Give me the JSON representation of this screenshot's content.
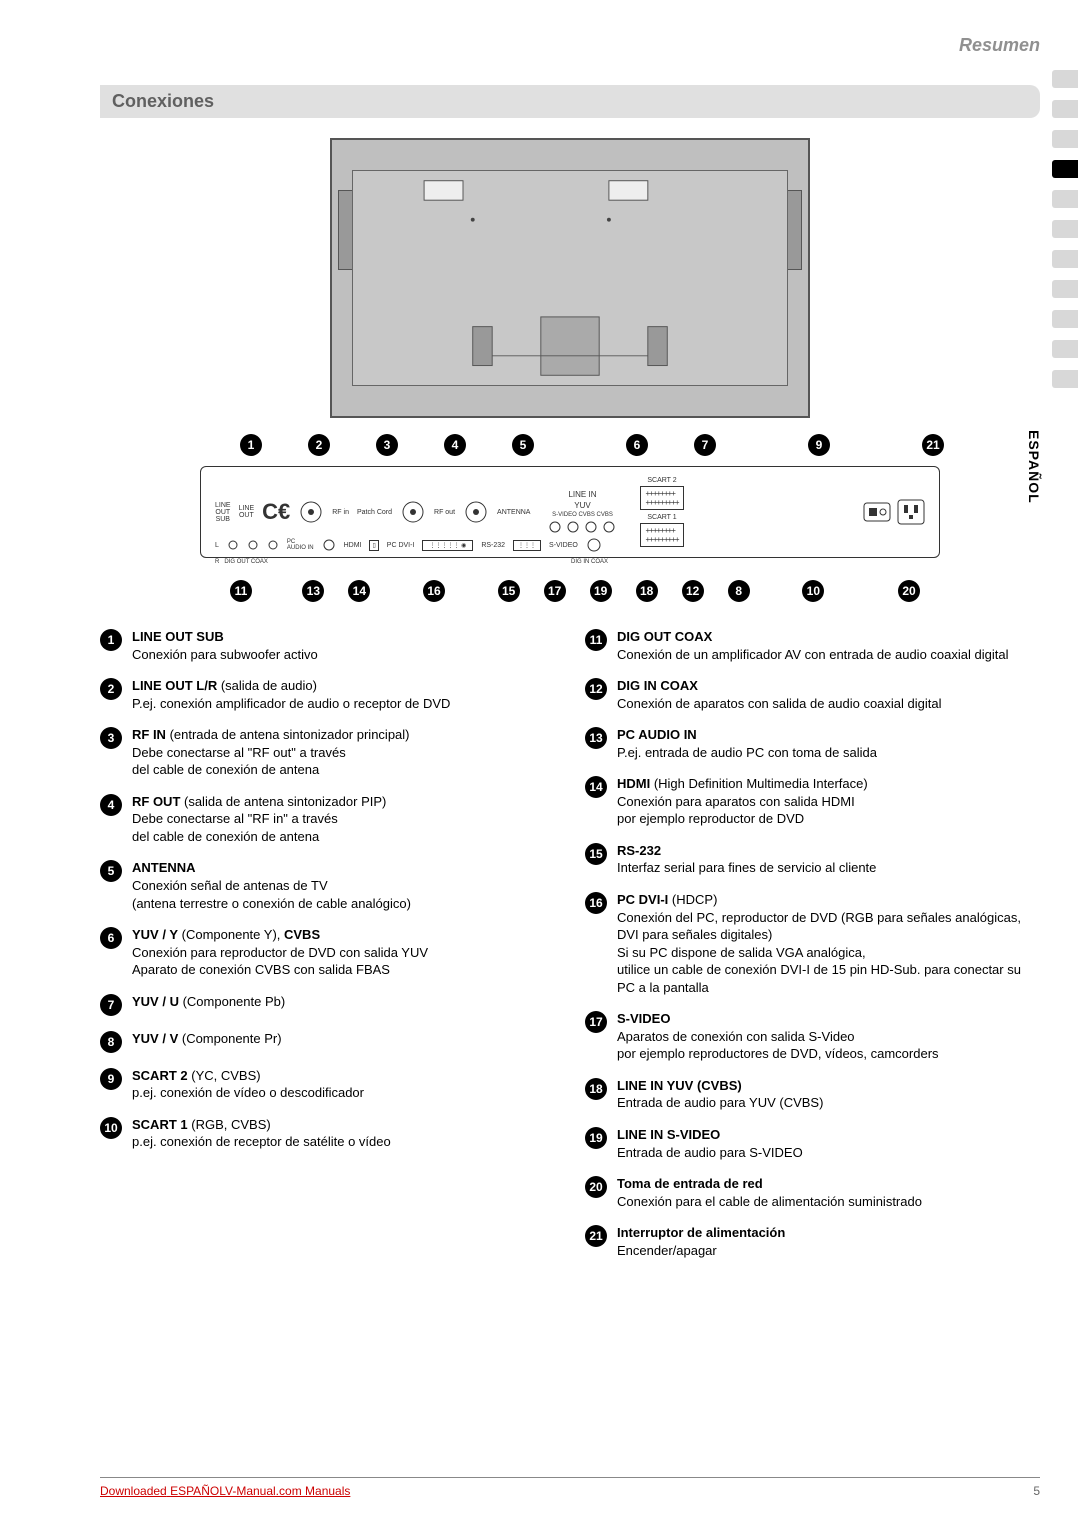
{
  "page": {
    "header": "Resumen",
    "section_title": "Conexiones",
    "side_tab": "ESPAÑOL",
    "footer_left_prefix": "Downloaded",
    "footer_link_1": "ESPAÑOL",
    "footer_link_2": "V-Manual.com Manuals",
    "footer_page": "5"
  },
  "diagram": {
    "top_row": [
      "1",
      "2",
      "3",
      "4",
      "5",
      "6",
      "7",
      "9",
      "21"
    ],
    "bottom_row": [
      "11",
      "13",
      "14",
      "16",
      "15",
      "17",
      "19",
      "18",
      "12",
      "8",
      "10",
      "20"
    ],
    "panel_labels": {
      "line_out_sub": "LINE\nOUT\nSUB",
      "line_out": "LINE\nOUT",
      "rf_in": "RF in",
      "patch": "Patch Cord",
      "rf_out": "RF out",
      "antenna": "ANTENNA",
      "pc_audio": "PC\nAUDIO IN",
      "hdmi": "HDMI",
      "pc_dvi": "PC DVI-I",
      "rs232": "RS-232",
      "svideo": "S-VIDEO",
      "line_in": "LINE IN",
      "yuv": "YUV",
      "svideo_cvbs": "S-VIDEO  CVBS  CVBS",
      "scart2": "SCART 2",
      "scart1": "SCART 1",
      "dig_out": "DIG OUT COAX",
      "dig_in": "DIG IN COAX",
      "l": "L",
      "r": "R"
    }
  },
  "connections_left": [
    {
      "num": "1",
      "title": "LINE OUT SUB",
      "desc": "Conexión para subwoofer activo"
    },
    {
      "num": "2",
      "title": "LINE OUT L/R",
      "suffix": " (salida de audio)",
      "desc": "P.ej. conexión amplificador de audio o receptor de DVD"
    },
    {
      "num": "3",
      "title": "RF IN",
      "suffix": " (entrada de antena sintonizador principal)",
      "desc": "Debe conectarse al \"RF out\" a través\ndel cable de conexión de antena"
    },
    {
      "num": "4",
      "title": "RF OUT",
      "suffix": " (salida de antena sintonizador PIP)",
      "desc": "Debe conectarse al \"RF in\" a través\ndel cable de conexión de antena"
    },
    {
      "num": "5",
      "title": "ANTENNA",
      "desc": "Conexión señal de antenas de TV\n(antena terrestre o conexión de cable analógico)"
    },
    {
      "num": "6",
      "title": "YUV / Y",
      "suffix": " (Componente Y), ",
      "title2": "CVBS",
      "desc": "Conexión para reproductor de DVD con salida YUV\nAparato de conexión CVBS con salida FBAS"
    },
    {
      "num": "7",
      "title": "YUV / U",
      "suffix": " (Componente Pb)",
      "desc": ""
    },
    {
      "num": "8",
      "title": "YUV / V",
      "suffix": " (Componente Pr)",
      "desc": ""
    },
    {
      "num": "9",
      "title": "SCART 2",
      "suffix": " (YC, CVBS)",
      "desc": "p.ej. conexión de vídeo o descodificador"
    },
    {
      "num": "10",
      "title": "SCART 1",
      "suffix": " (RGB, CVBS)",
      "desc": "p.ej. conexión de receptor de satélite o vídeo"
    }
  ],
  "connections_right": [
    {
      "num": "11",
      "title": "DIG OUT COAX",
      "desc": "Conexión de un amplificador AV con entrada de audio coaxial digital"
    },
    {
      "num": "12",
      "title": "DIG IN COAX",
      "desc": "Conexión de aparatos con salida de audio coaxial digital"
    },
    {
      "num": "13",
      "title": "PC AUDIO IN",
      "desc": "P.ej. entrada de audio PC con toma de salida"
    },
    {
      "num": "14",
      "title": "HDMI",
      "suffix": " (High Definition Multimedia Interface)",
      "desc": "Conexión para aparatos con salida HDMI\npor ejemplo reproductor de DVD"
    },
    {
      "num": "15",
      "title": "RS-232",
      "desc": "Interfaz serial para fines de servicio al cliente"
    },
    {
      "num": "16",
      "title": "PC DVI-I",
      "suffix": " (HDCP)",
      "desc": "Conexión del PC, reproductor de DVD (RGB para señales analógicas, DVI para señales digitales)\nSi su PC dispone de salida VGA analógica,\nutilice un cable de conexión DVI-I de 15 pin HD-Sub. para conectar su PC a la pantalla"
    },
    {
      "num": "17",
      "title": "S-VIDEO",
      "desc": "Aparatos de conexión con salida S-Video\npor ejemplo reproductores de DVD, vídeos, camcorders"
    },
    {
      "num": "18",
      "title": "LINE IN YUV (CVBS)",
      "desc": "Entrada de audio para YUV (CVBS)"
    },
    {
      "num": "19",
      "title": "LINE IN S-VIDEO",
      "desc": "Entrada de audio para S-VIDEO"
    },
    {
      "num": "20",
      "title": "Toma de entrada de red",
      "desc": "Conexión para el cable de alimentación suministrado"
    },
    {
      "num": "21",
      "title": "Interruptor de alimentación",
      "desc": "Encender/apagar"
    }
  ],
  "colors": {
    "header_gray": "#909090",
    "section_bg": "#e0e0e0",
    "footer_link": "#cc0000",
    "badge_bg": "#000000",
    "tv_bg": "#bfbfbf"
  }
}
